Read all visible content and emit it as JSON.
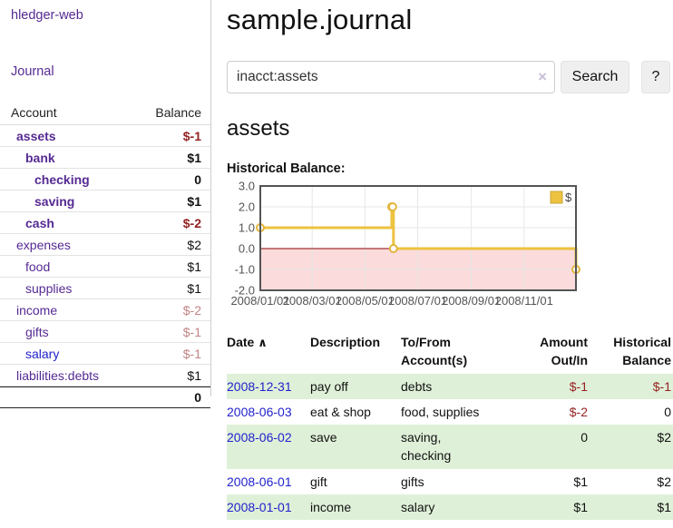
{
  "colors": {
    "accent_purple": "#552a93",
    "link_blue": "#2222cc",
    "negative": "#942222",
    "negative_muted": "#c28484",
    "row_green": "#dff0d8",
    "chart_line": "#edc240",
    "chart_negative_fill": "#fbdbdb",
    "chart_zero_line": "#8b0000"
  },
  "app": {
    "brand": "hledger-web",
    "nav_journal": "Journal"
  },
  "sidebar": {
    "header": {
      "account": "Account",
      "balance": "Balance"
    },
    "rows": [
      {
        "name": "assets",
        "balance": "$-1"
      },
      {
        "name": "bank",
        "balance": "$1"
      },
      {
        "name": "checking",
        "balance": "0"
      },
      {
        "name": "saving",
        "balance": "$1"
      },
      {
        "name": "cash",
        "balance": "$-2"
      },
      {
        "name": "expenses",
        "balance": "$2"
      },
      {
        "name": "food",
        "balance": "$1"
      },
      {
        "name": "supplies",
        "balance": "$1"
      },
      {
        "name": "income",
        "balance": "$-2"
      },
      {
        "name": "gifts",
        "balance": "$-1"
      },
      {
        "name": "salary",
        "balance": "$-1"
      },
      {
        "name": "liabilities:debts",
        "balance": "$1"
      }
    ],
    "total": "0"
  },
  "header": {
    "title": "sample.journal"
  },
  "search": {
    "value": "inacct:assets",
    "clear_icon": "×",
    "button_label": "Search",
    "help_label": "?"
  },
  "account_page": {
    "heading": "assets",
    "chart_label": "Historical Balance:"
  },
  "chart_data": {
    "type": "line",
    "style": "step",
    "title": "Historical Balance",
    "series": [
      {
        "name": "$",
        "points": [
          {
            "date": "2008-01-01",
            "value": 1
          },
          {
            "date": "2008-06-01",
            "value": 2
          },
          {
            "date": "2008-06-02",
            "value": 2
          },
          {
            "date": "2008-06-03",
            "value": 0
          },
          {
            "date": "2008-12-31",
            "value": -1
          }
        ]
      }
    ],
    "x_range": [
      "2008-01-01",
      "2008-12-31"
    ],
    "x_ticks": [
      "2008/01/01",
      "2008/03/01",
      "2008/05/01",
      "2008/07/01",
      "2008/09/01",
      "2008/11/01"
    ],
    "y_ticks": [
      "3.0",
      "2.0",
      "1.0",
      "0.0",
      "-1.0",
      "-2.0"
    ],
    "ylim": [
      -2,
      3
    ],
    "grid": true,
    "legend": {
      "label": "$",
      "position": "top-right"
    },
    "negative_region_shaded": true
  },
  "register": {
    "sort_icon": "∧",
    "columns": {
      "date": "Date",
      "description": "Description",
      "accounts": "To/From Account(s)",
      "amount": "Amount Out/In",
      "balance": "Historical Balance"
    },
    "rows": [
      {
        "date": "2008-12-31",
        "description": "pay off",
        "accounts": "debts",
        "amount": "$-1",
        "balance": "$-1"
      },
      {
        "date": "2008-06-03",
        "description": "eat & shop",
        "accounts": "food, supplies",
        "amount": "$-2",
        "balance": "0"
      },
      {
        "date": "2008-06-02",
        "description": "save",
        "accounts": "saving,\nchecking",
        "amount": "0",
        "balance": "$2"
      },
      {
        "date": "2008-06-01",
        "description": "gift",
        "accounts": "gifts",
        "amount": "$1",
        "balance": "$2"
      },
      {
        "date": "2008-01-01",
        "description": "income",
        "accounts": "salary",
        "amount": "$1",
        "balance": "$1"
      }
    ]
  }
}
